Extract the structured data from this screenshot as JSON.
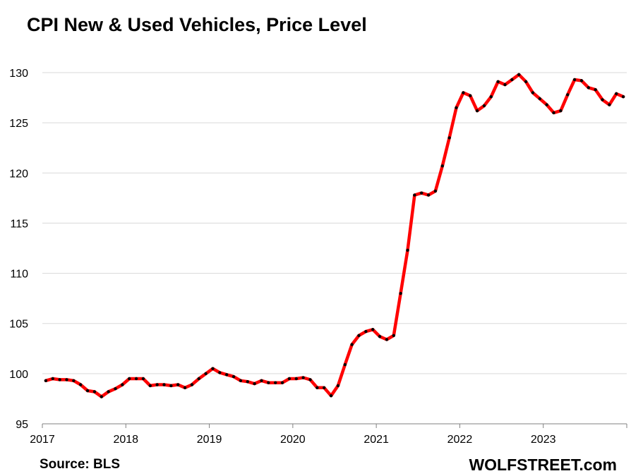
{
  "chart_data": {
    "type": "line",
    "title": "CPI New & Used Vehicles, Price Level",
    "xlabel": "",
    "ylabel": "",
    "ylim": [
      95,
      130
    ],
    "yticks": [
      95,
      100,
      105,
      110,
      115,
      120,
      125,
      130
    ],
    "x_tick_labels": [
      "2017",
      "2018",
      "2019",
      "2020",
      "2021",
      "2022",
      "2023"
    ],
    "x_start": "2017-01",
    "grid": true,
    "series": [
      {
        "name": "CPI New & Used Vehicles",
        "color": "#ff0000",
        "marker_color": "#000000",
        "values": [
          99.3,
          99.5,
          99.4,
          99.4,
          99.3,
          98.9,
          98.3,
          98.2,
          97.7,
          98.2,
          98.5,
          98.9,
          99.5,
          99.5,
          99.5,
          98.8,
          98.9,
          98.9,
          98.8,
          98.9,
          98.6,
          98.9,
          99.5,
          100.0,
          100.5,
          100.1,
          99.9,
          99.7,
          99.3,
          99.2,
          99.0,
          99.3,
          99.1,
          99.1,
          99.1,
          99.5,
          99.5,
          99.6,
          99.4,
          98.6,
          98.6,
          97.8,
          98.8,
          100.9,
          102.9,
          103.8,
          104.2,
          104.4,
          103.7,
          103.4,
          103.8,
          108.0,
          112.3,
          117.8,
          118.0,
          117.8,
          118.2,
          120.7,
          123.5,
          126.5,
          128.0,
          127.7,
          126.2,
          126.7,
          127.6,
          129.1,
          128.8,
          129.3,
          129.8,
          129.1,
          128.0,
          127.4,
          126.8,
          126.0,
          126.2,
          127.8,
          129.3,
          129.2,
          128.5,
          128.3,
          127.3,
          126.8,
          127.9,
          127.6
        ]
      }
    ]
  },
  "footer": {
    "source": "Source: BLS",
    "brand": "WOLFSTREET.com"
  }
}
